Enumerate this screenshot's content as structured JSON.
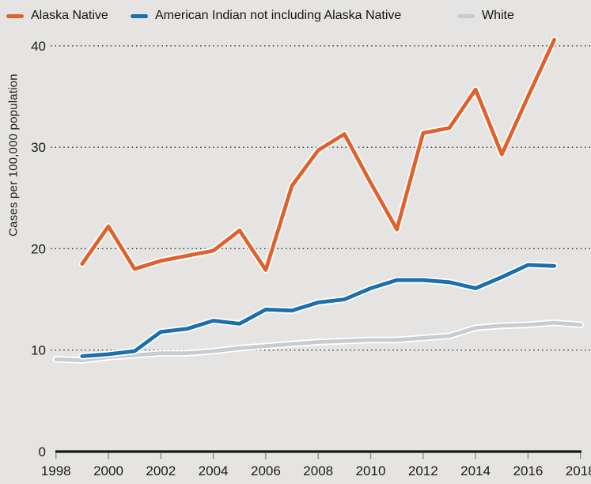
{
  "chart_data": {
    "type": "line",
    "title": "",
    "xlabel": "",
    "ylabel": "Cases per 100,000 population",
    "xlim": [
      1998,
      2018
    ],
    "ylim": [
      0,
      42
    ],
    "y_ticks": [
      0,
      10,
      20,
      30,
      40
    ],
    "x_ticks": [
      1998,
      2000,
      2002,
      2004,
      2006,
      2008,
      2010,
      2012,
      2014,
      2016,
      2018
    ],
    "grid": "horizontal dotted lines at y ticks",
    "legend_position": "top",
    "series": [
      {
        "name": "Alaska Native",
        "color": "#df612c",
        "x": [
          1999,
          2000,
          2001,
          2002,
          2003,
          2004,
          2005,
          2006,
          2007,
          2008,
          2009,
          2010,
          2011,
          2012,
          2013,
          2014,
          2015,
          2016,
          2017
        ],
        "values": [
          18.5,
          22.2,
          18.0,
          18.8,
          19.3,
          19.8,
          21.8,
          17.9,
          26.2,
          29.7,
          31.3,
          26.5,
          21.9,
          31.4,
          31.9,
          35.7,
          29.3,
          35.0,
          40.6
        ]
      },
      {
        "name": "American Indian not including Alaska Native",
        "color": "#1c6fad",
        "x": [
          1999,
          2000,
          2001,
          2002,
          2003,
          2004,
          2005,
          2006,
          2007,
          2008,
          2009,
          2010,
          2011,
          2012,
          2013,
          2014,
          2015,
          2016,
          2017
        ],
        "values": [
          9.4,
          9.6,
          9.9,
          11.8,
          12.1,
          12.9,
          12.6,
          14.0,
          13.9,
          14.7,
          15.0,
          16.1,
          16.9,
          16.9,
          16.7,
          16.1,
          17.2,
          18.4,
          18.3
        ]
      },
      {
        "name": "White",
        "color": "#c6ccd2",
        "x": [
          1998,
          1999,
          2000,
          2001,
          2002,
          2003,
          2004,
          2005,
          2006,
          2007,
          2008,
          2009,
          2010,
          2011,
          2012,
          2013,
          2014,
          2015,
          2016,
          2017,
          2018
        ],
        "values": [
          9.1,
          9.0,
          9.3,
          9.5,
          9.7,
          9.7,
          9.9,
          10.2,
          10.4,
          10.6,
          10.8,
          10.9,
          11.0,
          11.0,
          11.2,
          11.4,
          12.2,
          12.4,
          12.5,
          12.7,
          12.5
        ]
      }
    ]
  },
  "style": {
    "background": "#e5e4e2",
    "axis_color": "#161616",
    "tick_color": "#8f8f8f",
    "gridline_color": "#3c3c3c",
    "line_outline_color": "#ffffff"
  }
}
